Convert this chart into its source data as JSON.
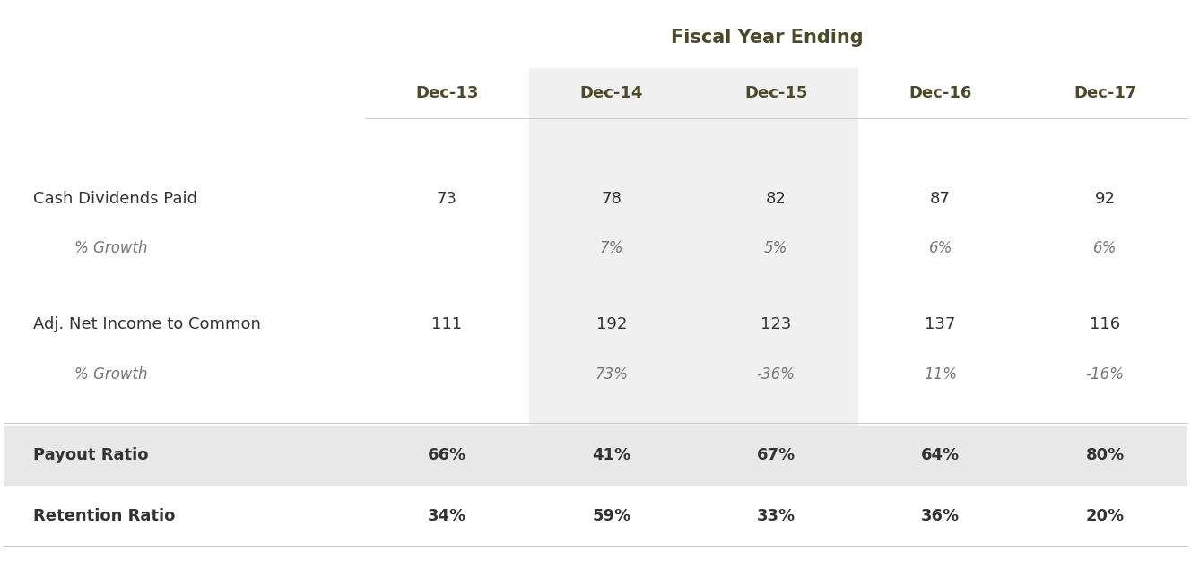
{
  "title": "Fiscal Year Ending",
  "title_color": "#4a4a2a",
  "columns": [
    "Dec-13",
    "Dec-14",
    "Dec-15",
    "Dec-16",
    "Dec-17"
  ],
  "col_header_color": "#4a4a2a",
  "rows": [
    {
      "label": "Cash Dividends Paid",
      "values": [
        "73",
        "78",
        "82",
        "87",
        "92"
      ],
      "bold": false,
      "italic": false,
      "background": null
    },
    {
      "label": "% Growth",
      "values": [
        "",
        "7%",
        "5%",
        "6%",
        "6%"
      ],
      "bold": false,
      "italic": true,
      "background": null
    },
    {
      "label": "",
      "values": [
        "",
        "",
        "",
        "",
        ""
      ],
      "bold": false,
      "italic": false,
      "background": null
    },
    {
      "label": "Adj. Net Income to Common",
      "values": [
        "111",
        "192",
        "123",
        "137",
        "116"
      ],
      "bold": false,
      "italic": false,
      "background": null
    },
    {
      "label": "% Growth",
      "values": [
        "",
        "73%",
        "-36%",
        "11%",
        "-16%"
      ],
      "bold": false,
      "italic": true,
      "background": null
    },
    {
      "label": "",
      "values": [
        "",
        "",
        "",
        "",
        ""
      ],
      "bold": false,
      "italic": false,
      "background": null
    },
    {
      "label": "Payout Ratio",
      "values": [
        "66%",
        "41%",
        "67%",
        "64%",
        "80%"
      ],
      "bold": true,
      "italic": false,
      "background": "#e8e8e8"
    },
    {
      "label": "Retention Ratio",
      "values": [
        "34%",
        "59%",
        "33%",
        "36%",
        "20%"
      ],
      "bold": true,
      "italic": false,
      "background": "#ffffff"
    }
  ],
  "shaded_cols": [
    1,
    2
  ],
  "shaded_col_color": "#f0f0f0",
  "text_color_normal": "#333333",
  "text_color_italic": "#777777",
  "text_color_bold": "#333333",
  "background_color": "#ffffff",
  "separator_line_color": "#cccccc",
  "fig_width": 13.28,
  "fig_height": 6.34,
  "dpi": 100
}
